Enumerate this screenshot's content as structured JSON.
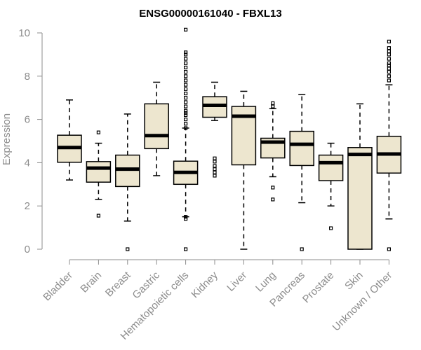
{
  "chart_data": {
    "type": "boxplot",
    "title": "ENSG00000161040 - FBXL13",
    "ylabel": "Expression",
    "xlabel": "",
    "ylim": [
      0,
      10
    ],
    "yticks": [
      0,
      2,
      4,
      6,
      8,
      10
    ],
    "box_fill": "#ede6cf",
    "categories": [
      "Bladder",
      "Brain",
      "Breast",
      "Gastric",
      "Hematopoietic cells",
      "Kidney",
      "Liver",
      "Lung",
      "Pancreas",
      "Prostate",
      "Skin",
      "Unknown / Other"
    ],
    "boxes": [
      {
        "label": "Bladder",
        "whislo": 3.2,
        "q1": 4.02,
        "med": 4.7,
        "q3": 5.27,
        "whishi": 6.9,
        "fliers": []
      },
      {
        "label": "Brain",
        "whislo": 2.3,
        "q1": 3.1,
        "med": 3.75,
        "q3": 4.05,
        "whishi": 4.9,
        "fliers": [
          1.55,
          5.4
        ]
      },
      {
        "label": "Breast",
        "whislo": 1.3,
        "q1": 2.9,
        "med": 3.7,
        "q3": 4.35,
        "whishi": 6.25,
        "fliers": [
          0.0
        ]
      },
      {
        "label": "Gastric",
        "whislo": 3.4,
        "q1": 4.65,
        "med": 5.25,
        "q3": 6.72,
        "whishi": 7.72,
        "fliers": []
      },
      {
        "label": "Hematopoietic cells",
        "whislo": 1.5,
        "q1": 3.0,
        "med": 3.55,
        "q3": 4.07,
        "whishi": 5.6,
        "fliers": [
          0.0,
          1.4,
          1.5,
          5.6,
          5.8,
          6.0,
          6.2,
          6.3,
          6.4,
          6.6,
          6.8,
          7.0,
          7.2,
          7.4,
          7.6,
          7.8,
          8.0,
          8.2,
          8.4,
          8.6,
          8.8,
          9.0,
          9.1,
          10.15
        ]
      },
      {
        "label": "Kidney",
        "whislo": 5.95,
        "q1": 6.1,
        "med": 6.65,
        "q3": 7.05,
        "whishi": 7.72,
        "fliers": [
          3.4,
          3.55,
          3.7,
          3.85,
          4.05,
          4.2
        ]
      },
      {
        "label": "Liver",
        "whislo": 0.0,
        "q1": 3.9,
        "med": 6.15,
        "q3": 6.6,
        "whishi": 7.3,
        "fliers": []
      },
      {
        "label": "Lung",
        "whislo": 3.35,
        "q1": 4.22,
        "med": 4.95,
        "q3": 5.13,
        "whishi": 6.5,
        "fliers": [
          2.3,
          2.85,
          6.6,
          6.75
        ]
      },
      {
        "label": "Pancreas",
        "whislo": 2.15,
        "q1": 3.87,
        "med": 4.85,
        "q3": 5.45,
        "whishi": 7.15,
        "fliers": [
          0.0
        ]
      },
      {
        "label": "Prostate",
        "whislo": 2.0,
        "q1": 3.17,
        "med": 4.0,
        "q3": 4.35,
        "whishi": 4.9,
        "fliers": [
          0.97
        ]
      },
      {
        "label": "Skin",
        "whislo": 0.0,
        "q1": 0.0,
        "med": 4.38,
        "q3": 4.7,
        "whishi": 6.72,
        "fliers": []
      },
      {
        "label": "Unknown / Other",
        "whislo": 1.4,
        "q1": 3.52,
        "med": 4.4,
        "q3": 5.22,
        "whishi": 7.6,
        "fliers": [
          0.0,
          7.8,
          8.0,
          8.2,
          8.35,
          8.5,
          8.6,
          8.8,
          9.0,
          9.15,
          9.3,
          9.6
        ]
      }
    ]
  }
}
